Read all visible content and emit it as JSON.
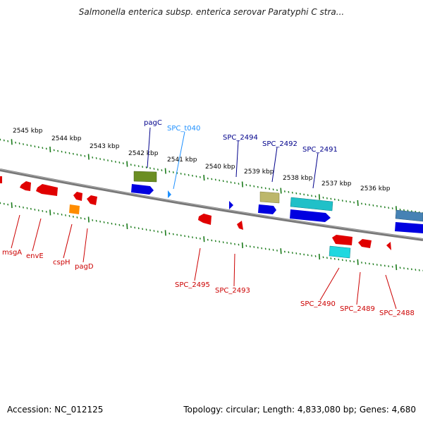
{
  "title": "Salmonella enterica subsp. enterica serovar Paratyphi C stra...",
  "footer": {
    "accession": "Accession: NC_012125",
    "topology": "Topology: circular; Length: 4,833,080 bp; Genes: 4,680"
  },
  "kbp_labels": [
    "2545 kbp",
    "2544 kbp",
    "2543 kbp",
    "2542 kbp",
    "2541 kbp",
    "2540 kbp",
    "2539 kbp",
    "2538 kbp",
    "2537 kbp",
    "2536 kbp"
  ],
  "genes_top": [
    "pagC",
    "SPC_t040",
    "SPC_2494",
    "SPC_2492",
    "SPC_2491"
  ],
  "genes_bottom": [
    "msgA",
    "envE",
    "cspH",
    "pagD",
    "SPC_2495",
    "SPC_2493",
    "SPC_2490",
    "SPC_2489",
    "SPC_2488"
  ],
  "colors": {
    "label_dark_blue": "#00008b",
    "label_light_blue": "#1e90ff",
    "label_red": "#cc0000",
    "tick_green": "#1a7a1a",
    "backbone": "#808080",
    "gene_red": "#e00000",
    "gene_blue": "#0000e0",
    "gene_olive": "#6b8e23",
    "gene_khaki": "#bdb76b",
    "gene_cyan": "#20c0c8",
    "gene_orange": "#ff8c00",
    "gene_steel": "#4682b4"
  }
}
